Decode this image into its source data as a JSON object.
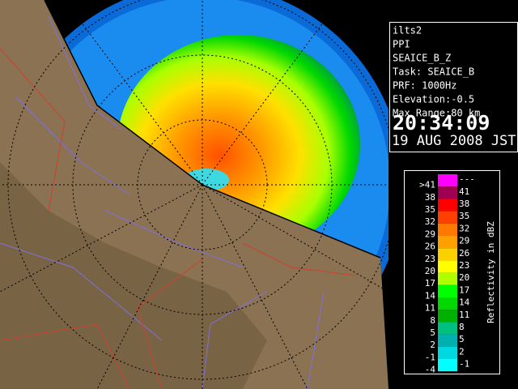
{
  "info": {
    "lines": [
      "ilts2",
      "PPI",
      "SEAICE_B_Z",
      "Task: SEAICE_B",
      "PRF: 1000Hz",
      "Elevation:-0.5",
      "Max Range:80 km"
    ],
    "time": "20:34:09",
    "date": "19 AUG 2008 JST"
  },
  "legend": {
    "title": "Reflectivity in dBZ",
    "rows": [
      {
        "low": ">41",
        "high": "---",
        "color": "#ff00ff"
      },
      {
        "low": "38",
        "high": "41",
        "color": "#a00050"
      },
      {
        "low": "35",
        "high": "38",
        "color": "#ff0000"
      },
      {
        "low": "32",
        "high": "35",
        "color": "#ff4000"
      },
      {
        "low": "29",
        "high": "32",
        "color": "#ff7800"
      },
      {
        "low": "26",
        "high": "29",
        "color": "#ffa000"
      },
      {
        "low": "23",
        "high": "26",
        "color": "#ffd000"
      },
      {
        "low": "20",
        "high": "23",
        "color": "#ffff00"
      },
      {
        "low": "17",
        "high": "20",
        "color": "#b0ff00"
      },
      {
        "low": "14",
        "high": "17",
        "color": "#00ff00"
      },
      {
        "low": "11",
        "high": "14",
        "color": "#00d800"
      },
      {
        "low": "8",
        "high": "11",
        "color": "#00b000"
      },
      {
        "low": "5",
        "high": "8",
        "color": "#00c080"
      },
      {
        "low": "2",
        "high": "5",
        "color": "#00b0b0"
      },
      {
        "low": "-1",
        "high": "2",
        "color": "#00d8e0"
      },
      {
        "low": "-4",
        "high": "-1",
        "color": "#00ffff"
      }
    ]
  }
}
